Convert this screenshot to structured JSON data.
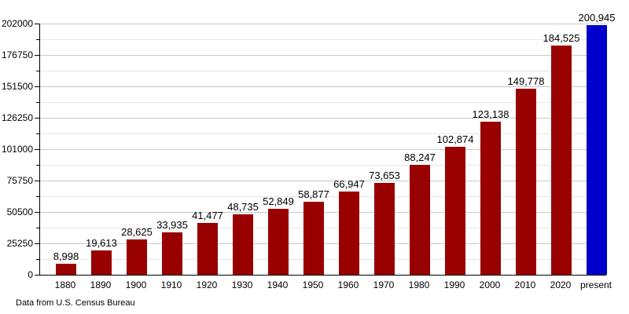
{
  "chart_data": {
    "type": "bar",
    "title": "",
    "xlabel": "",
    "ylabel": "",
    "categories": [
      "1880",
      "1890",
      "1900",
      "1910",
      "1920",
      "1930",
      "1940",
      "1950",
      "1960",
      "1970",
      "1980",
      "1990",
      "2000",
      "2010",
      "2020",
      "present"
    ],
    "values": [
      8998,
      19613,
      28625,
      33935,
      41477,
      48735,
      52849,
      58877,
      66947,
      73653,
      88247,
      102874,
      123138,
      149778,
      184525,
      200945
    ],
    "value_labels": [
      "8,998",
      "19,613",
      "28,625",
      "33,935",
      "41,477",
      "48,735",
      "52,849",
      "58,877",
      "66,947",
      "73,653",
      "88,247",
      "102,874",
      "123,138",
      "149,778",
      "184,525",
      "200,945"
    ],
    "ylim": [
      0,
      202000
    ],
    "ytick_interval": 25250,
    "minor_gridline_interval": 12625,
    "ytick_labels": [
      "0",
      "25250",
      "50500",
      "75750",
      "101000",
      "126250",
      "151500",
      "176750",
      "202000"
    ],
    "grid": true,
    "legend": "none",
    "bar_color": "#990000",
    "highlight_bar_color": "#0000cc",
    "highlight_category": "present",
    "highlight_index": 15,
    "source_note": "Data from U.S. Census Bureau"
  }
}
